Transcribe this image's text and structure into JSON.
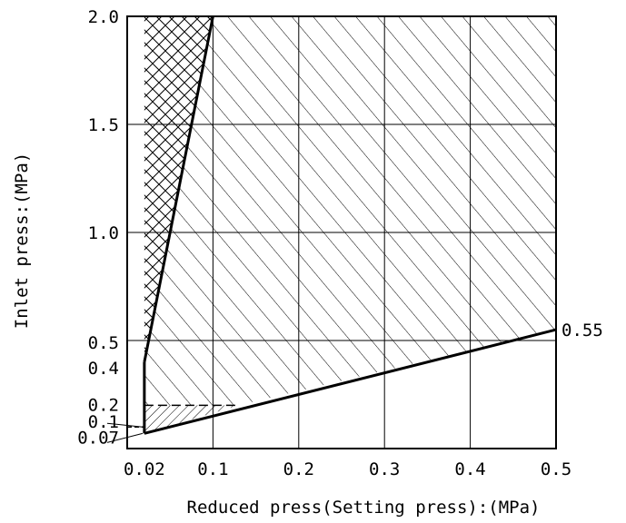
{
  "chart_data": {
    "type": "area",
    "title": "",
    "xlabel": "Reduced press(Setting press):(MPa)",
    "ylabel": "Inlet press:(MPa)",
    "xlim": [
      0,
      0.5
    ],
    "ylim": [
      0,
      2.0
    ],
    "x_ticks": [
      {
        "value": 0.02,
        "label": "0.02"
      },
      {
        "value": 0.1,
        "label": "0.1"
      },
      {
        "value": 0.2,
        "label": "0.2"
      },
      {
        "value": 0.3,
        "label": "0.3"
      },
      {
        "value": 0.4,
        "label": "0.4"
      },
      {
        "value": 0.5,
        "label": "0.5"
      }
    ],
    "y_ticks": [
      {
        "value": 0.07,
        "label": "0.07"
      },
      {
        "value": 0.1,
        "label": "0.1"
      },
      {
        "value": 0.2,
        "label": "0.2"
      },
      {
        "value": 0.4,
        "label": "0.4"
      },
      {
        "value": 0.5,
        "label": "0.5"
      },
      {
        "value": 1.0,
        "label": "1.0"
      },
      {
        "value": 1.5,
        "label": "1.5"
      },
      {
        "value": 2.0,
        "label": "2.0"
      }
    ],
    "grid": true,
    "gridlines_x": [
      0.1,
      0.2,
      0.3,
      0.4
    ],
    "gridlines_y": [
      0.5,
      1.0,
      1.5
    ],
    "boundaries": {
      "left_curve": [
        [
          0.02,
          0.4
        ],
        [
          0.1,
          2.0
        ]
      ],
      "lower_curve": [
        [
          0.02,
          0.07
        ],
        [
          0.5,
          0.55
        ]
      ],
      "vertical_segment": [
        [
          0.02,
          0.07
        ],
        [
          0.02,
          0.4
        ]
      ],
      "dashed_line_0_2": [
        [
          0.02,
          0.2
        ],
        [
          0.13,
          0.2
        ]
      ],
      "dashed_line_0_1": [
        [
          0.0,
          0.1
        ],
        [
          0.02,
          0.1
        ]
      ]
    },
    "regions": [
      {
        "pattern": "cross-hatch",
        "polygon": [
          [
            0.02,
            0.4
          ],
          [
            0.1,
            2.0
          ],
          [
            0.02,
            2.0
          ]
        ]
      },
      {
        "pattern": "diagonal-hatch",
        "polygon": [
          [
            0.02,
            0.2
          ],
          [
            0.13,
            0.2
          ],
          [
            0.5,
            0.55
          ],
          [
            0.5,
            2.0
          ],
          [
            0.1,
            2.0
          ],
          [
            0.02,
            0.4
          ]
        ]
      },
      {
        "pattern": "dense-hatch",
        "polygon": [
          [
            0.02,
            0.07
          ],
          [
            0.13,
            0.2
          ],
          [
            0.02,
            0.2
          ]
        ]
      }
    ],
    "annotations": [
      {
        "text": "0.55",
        "x": 0.5,
        "y": 0.55
      }
    ]
  }
}
